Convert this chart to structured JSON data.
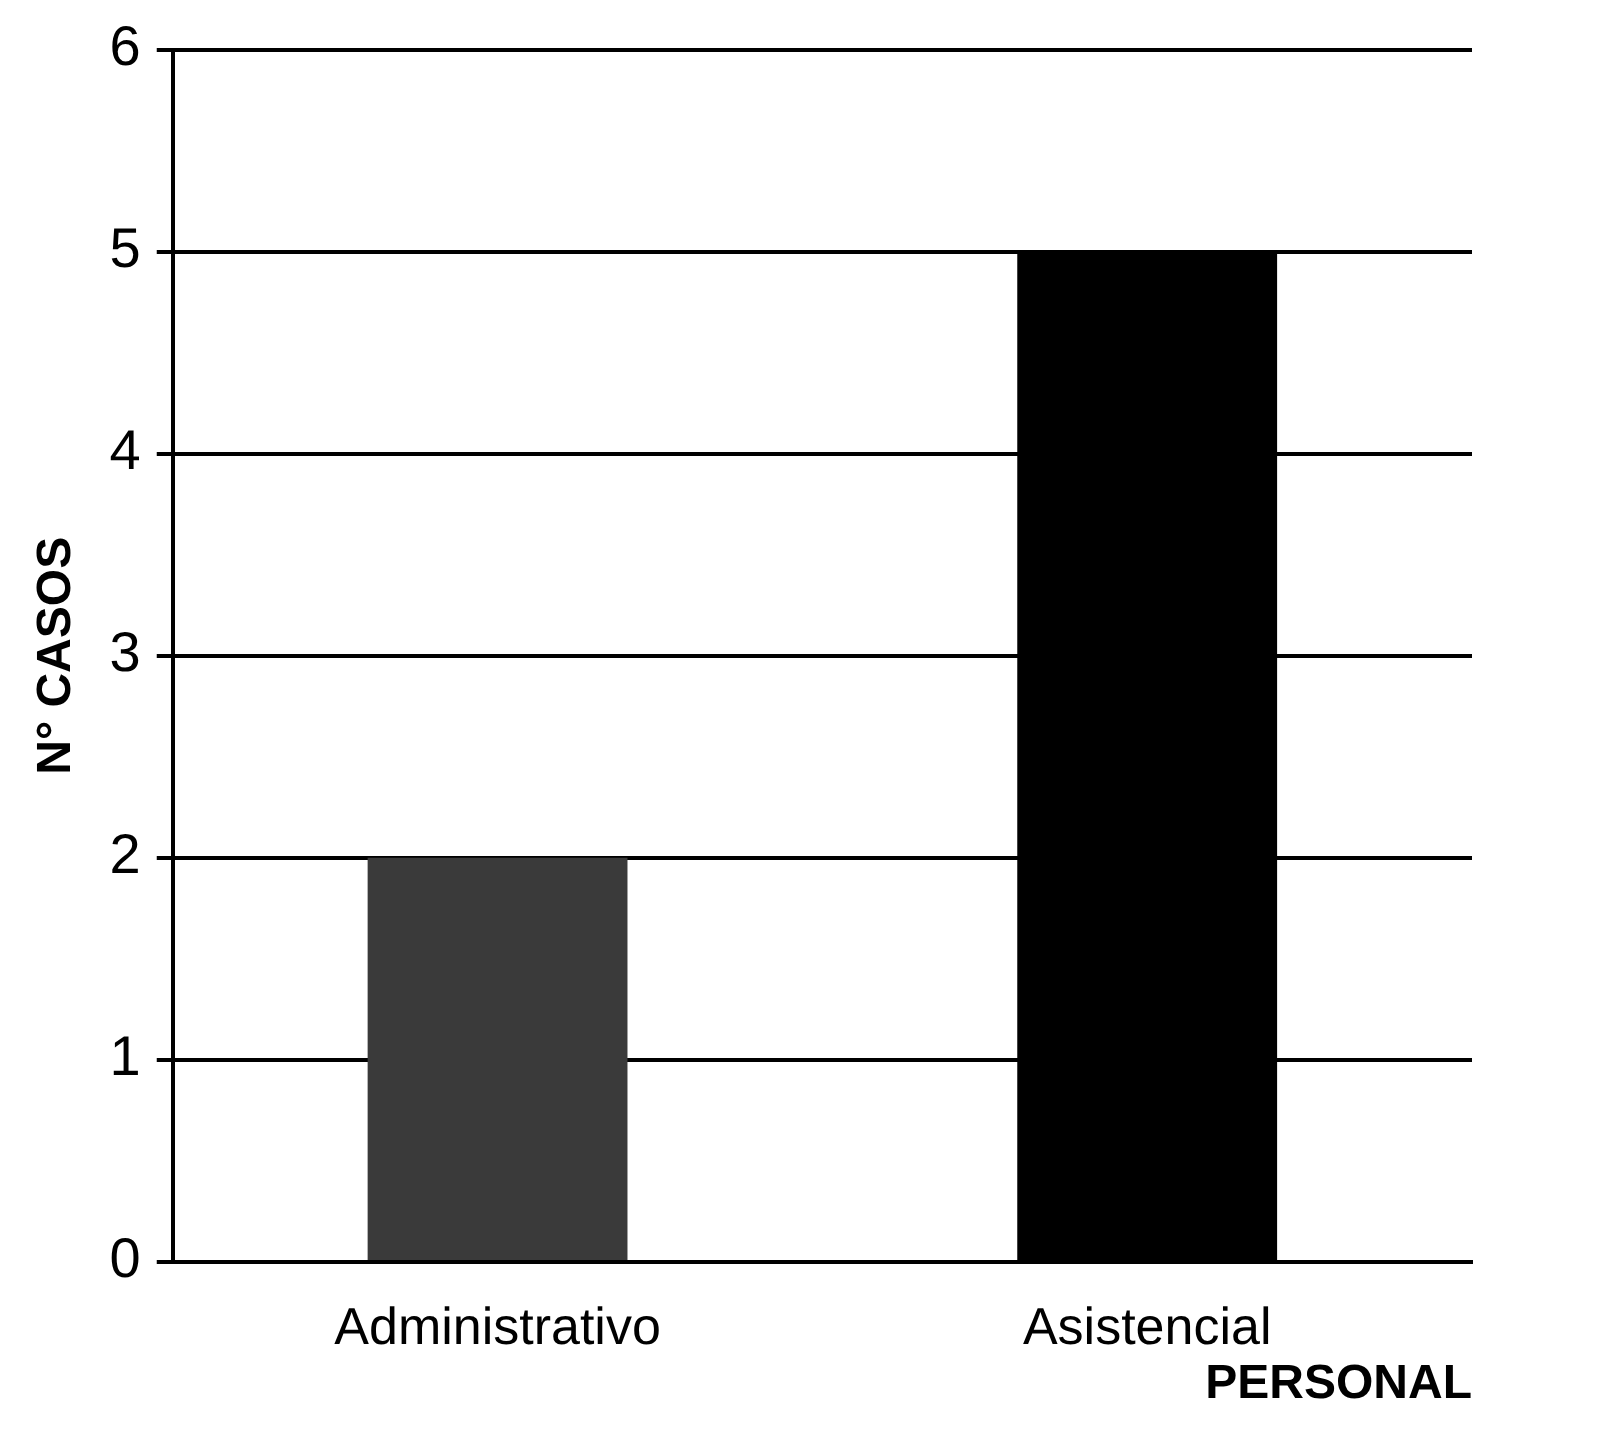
{
  "chart_data": {
    "type": "bar",
    "xlabel": "PERSONAL",
    "ylabel": "N° CASOS",
    "categories": [
      "Administrativo",
      "Asistencial"
    ],
    "values": [
      2,
      5
    ],
    "colors": [
      "#3a3a3a",
      "#000000"
    ],
    "ylim": [
      0,
      6
    ],
    "yticks": [
      0,
      1,
      2,
      3,
      4,
      5,
      6
    ],
    "grid": "y",
    "legend": false
  }
}
